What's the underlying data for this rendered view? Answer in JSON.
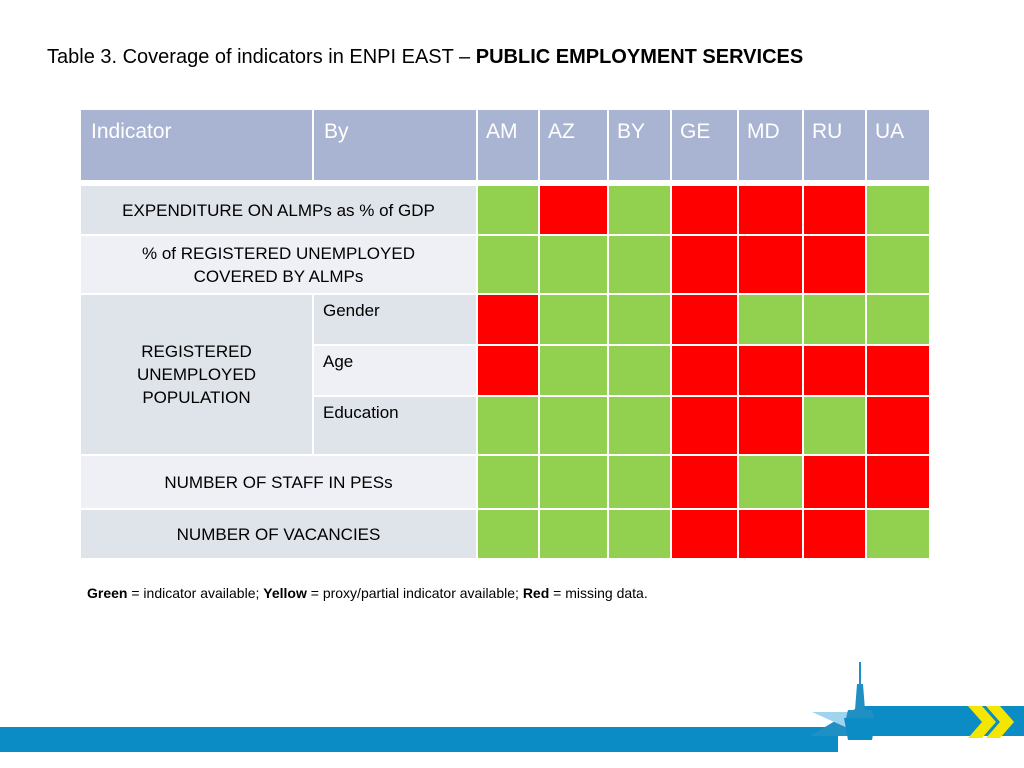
{
  "title": {
    "prefix": "Table 3. Coverage of indicators in ENPI EAST – ",
    "emphasis": "PUBLIC EMPLOYMENT SERVICES"
  },
  "table": {
    "headers": {
      "indicator": "Indicator",
      "by": "By"
    },
    "countries": [
      "AM",
      "AZ",
      "BY",
      "GE",
      "MD",
      "RU",
      "UA"
    ],
    "rows": [
      {
        "indicator": "EXPENDITURE ON ALMPs as % of GDP",
        "by": "",
        "status": [
          "green",
          "red",
          "green",
          "red",
          "red",
          "red",
          "green"
        ]
      },
      {
        "indicator": "% of REGISTERED UNEMPLOYED COVERED BY ALMPs",
        "by": "",
        "status": [
          "green",
          "green",
          "green",
          "red",
          "red",
          "red",
          "green"
        ]
      },
      {
        "indicator": "REGISTERED UNEMPLOYED POPULATION",
        "by": "Gender",
        "status": [
          "red",
          "green",
          "green",
          "red",
          "green",
          "green",
          "green"
        ]
      },
      {
        "indicator": "REGISTERED UNEMPLOYED POPULATION",
        "by": "Age",
        "status": [
          "red",
          "green",
          "green",
          "red",
          "red",
          "red",
          "red"
        ]
      },
      {
        "indicator": "REGISTERED UNEMPLOYED POPULATION",
        "by": "Education",
        "status": [
          "green",
          "green",
          "green",
          "red",
          "red",
          "green",
          "red"
        ]
      },
      {
        "indicator": "NUMBER OF STAFF IN PESs",
        "by": "",
        "status": [
          "green",
          "green",
          "green",
          "red",
          "green",
          "red",
          "red"
        ]
      },
      {
        "indicator": "NUMBER OF VACANCIES",
        "by": "",
        "status": [
          "green",
          "green",
          "green",
          "red",
          "red",
          "red",
          "green"
        ]
      }
    ]
  },
  "legend": {
    "green_label": "Green",
    "green_text": " = indicator available; ",
    "yellow_label": "Yellow",
    "yellow_text": " = proxy/partial indicator available; ",
    "red_label": "Red",
    "red_text": " = missing data."
  },
  "colors": {
    "green": "#92d050",
    "red": "#ff0000",
    "yellow": "#ffff00",
    "header": "#a9b4d2",
    "footer": "#0b8cc4"
  },
  "icons": [
    "spire-logo-icon",
    "double-chevron-icon"
  ]
}
